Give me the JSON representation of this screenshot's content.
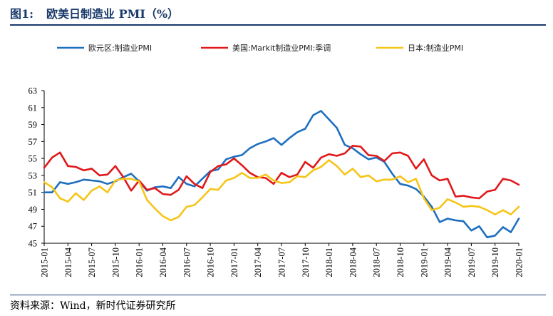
{
  "figure": {
    "number": "图1:",
    "title": "欧美日制造业 PMI（%）",
    "source": "资料来源：Wind，新时代证券研究所"
  },
  "chart_data": {
    "type": "line",
    "ylim": [
      45,
      63
    ],
    "yticks": [
      45,
      47,
      49,
      51,
      53,
      55,
      57,
      59,
      61,
      63
    ],
    "x_tick_labels": [
      "2015-01",
      "2015-04",
      "2015-07",
      "2015-10",
      "2016-01",
      "2016-04",
      "2016-07",
      "2016-10",
      "2017-01",
      "2017-04",
      "2017-07",
      "2017-10",
      "2018-01",
      "2018-04",
      "2018-07",
      "2018-10",
      "2019-01",
      "2019-04",
      "2019-07",
      "2019-10",
      "2020-01"
    ],
    "grid": false,
    "legend": "top",
    "series": [
      {
        "name": "欧元区:制造业PMI",
        "color": "#1f6fbf",
        "values": [
          51.0,
          51.0,
          52.2,
          52.0,
          52.2,
          52.5,
          52.4,
          52.3,
          52.0,
          52.3,
          52.8,
          53.2,
          52.3,
          51.2,
          51.6,
          51.7,
          51.5,
          52.8,
          52.0,
          51.7,
          52.6,
          53.5,
          53.7,
          54.9,
          55.2,
          55.4,
          56.2,
          56.7,
          57.0,
          57.4,
          56.6,
          57.4,
          58.1,
          58.5,
          60.1,
          60.6,
          59.6,
          58.6,
          56.6,
          56.2,
          55.5,
          54.9,
          55.1,
          54.6,
          53.2,
          52.0,
          51.8,
          51.4,
          50.5,
          49.3,
          47.5,
          47.9,
          47.7,
          47.6,
          46.5,
          47.0,
          45.7,
          45.9,
          46.9,
          46.3,
          47.9
        ]
      },
      {
        "name": "美国:Markit制造业PMI:季调",
        "color": "#e0191b",
        "values": [
          53.9,
          55.1,
          55.7,
          54.1,
          54.0,
          53.6,
          53.8,
          53.0,
          53.1,
          54.1,
          52.8,
          51.2,
          52.4,
          51.3,
          51.5,
          50.8,
          50.7,
          51.3,
          52.9,
          52.0,
          51.5,
          53.4,
          54.1,
          54.3,
          55.0,
          54.2,
          53.3,
          52.8,
          52.7,
          52.0,
          53.3,
          52.8,
          53.1,
          54.6,
          53.9,
          55.1,
          55.5,
          55.3,
          55.6,
          56.5,
          56.4,
          55.4,
          55.3,
          54.7,
          55.6,
          55.7,
          55.3,
          53.8,
          54.9,
          53.0,
          52.4,
          52.6,
          50.5,
          50.6,
          50.4,
          50.3,
          51.1,
          51.3,
          52.6,
          52.4,
          51.9
        ]
      },
      {
        "name": "日本:制造业PMI",
        "color": "#f5c518",
        "values": [
          52.2,
          51.6,
          50.3,
          49.9,
          50.9,
          50.1,
          51.2,
          51.7,
          51.0,
          52.4,
          52.6,
          52.6,
          52.3,
          50.1,
          49.1,
          48.2,
          47.7,
          48.1,
          49.3,
          49.5,
          50.4,
          51.4,
          51.3,
          52.4,
          52.7,
          53.3,
          52.7,
          52.7,
          53.1,
          52.4,
          52.1,
          52.2,
          52.9,
          52.8,
          53.6,
          54.0,
          54.8,
          54.1,
          53.1,
          53.8,
          52.8,
          53.0,
          52.3,
          52.5,
          52.5,
          52.9,
          52.2,
          52.6,
          50.3,
          48.9,
          49.2,
          50.2,
          49.8,
          49.3,
          49.4,
          49.3,
          48.9,
          48.4,
          48.9,
          48.4,
          49.3
        ]
      }
    ]
  }
}
